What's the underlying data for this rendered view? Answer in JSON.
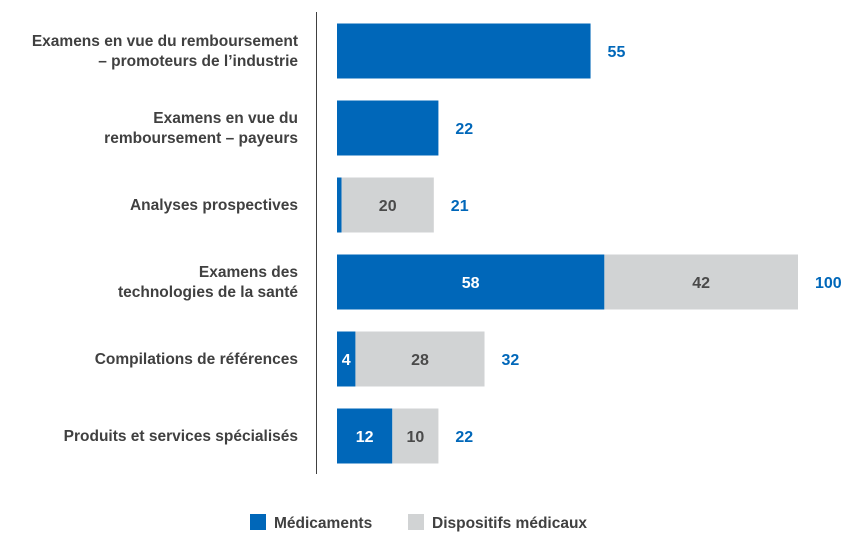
{
  "colors": {
    "med": "#0067b9",
    "dev": "#d1d3d4",
    "text": "#404040",
    "axis": "#404040",
    "total": "#0067b9",
    "medLabel": "#ffffff",
    "devLabel": "#4a4a4a"
  },
  "chart_data": {
    "type": "bar",
    "orientation": "horizontal",
    "stacked": true,
    "categories": [
      [
        "Examens en vue du remboursement",
        "– promoteurs de l’industrie"
      ],
      [
        "Examens en vue du",
        "remboursement – payeurs"
      ],
      [
        "Analyses prospectives"
      ],
      [
        "Examens des",
        "technologies de la santé"
      ],
      [
        "Compilations de références"
      ],
      [
        "Produits et services spécialisés"
      ]
    ],
    "series": [
      {
        "name": "Médicaments",
        "values": [
          55,
          22,
          1,
          58,
          4,
          12
        ],
        "labels": [
          "",
          "",
          "",
          "58",
          "4",
          "12"
        ]
      },
      {
        "name": "Dispositifs médicaux",
        "values": [
          0,
          0,
          20,
          42,
          28,
          10
        ],
        "labels": [
          "",
          "",
          "20",
          "42",
          "28",
          "10"
        ]
      }
    ],
    "totals": [
      "55",
      "22",
      "21",
      "100",
      "32",
      "22"
    ],
    "xlim": [
      0,
      100
    ],
    "legend_position": "bottom"
  }
}
